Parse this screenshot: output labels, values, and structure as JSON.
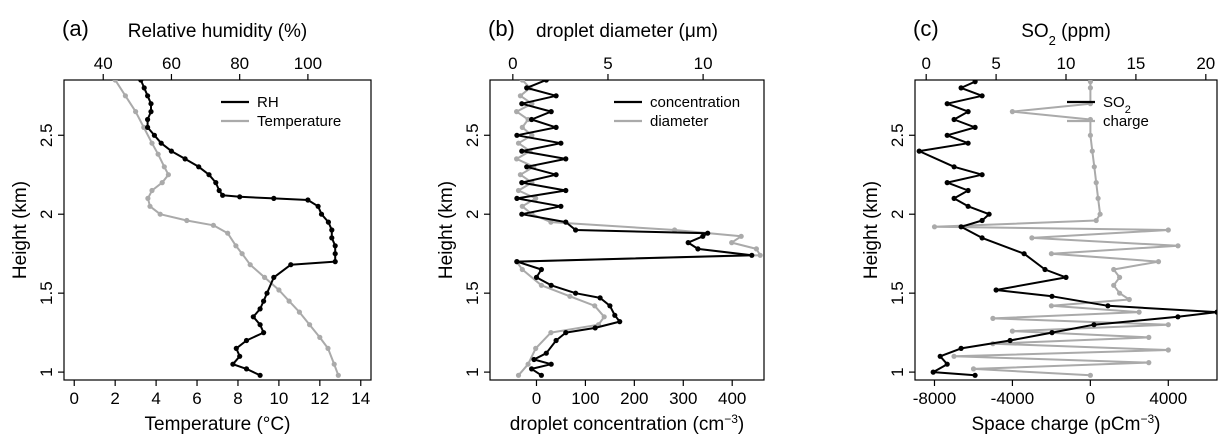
{
  "colors": {
    "black_series": "#000000",
    "gray_series": "#aaaaaa"
  },
  "chart_data": [
    {
      "type": "line",
      "panel_label": "(a)",
      "y": {
        "label": "Height (km)",
        "range": [
          0.95,
          2.85
        ],
        "ticks": [
          1.0,
          1.5,
          2.0,
          2.5
        ]
      },
      "x_bottom": {
        "label": "Temperature (°C)",
        "range": [
          -0.5,
          14.5
        ],
        "ticks": [
          0,
          2,
          4,
          6,
          8,
          10,
          12,
          14
        ]
      },
      "x_top": {
        "label": "Relative humidity (%)",
        "range": [
          28.5,
          118.5
        ],
        "ticks": [
          40,
          60,
          80,
          100
        ]
      },
      "legend": {
        "placement": "top-right",
        "entries": [
          "RH",
          "Temperature"
        ]
      },
      "series": [
        {
          "name": "RH",
          "axis": "top",
          "color": "black",
          "markers": true,
          "points": [
            [
              51,
              2.85
            ],
            [
              52,
              2.8
            ],
            [
              53,
              2.75
            ],
            [
              54,
              2.7
            ],
            [
              54,
              2.65
            ],
            [
              53,
              2.6
            ],
            [
              53,
              2.55
            ],
            [
              55,
              2.5
            ],
            [
              57,
              2.45
            ],
            [
              60,
              2.4
            ],
            [
              64,
              2.35
            ],
            [
              68,
              2.3
            ],
            [
              71,
              2.25
            ],
            [
              73,
              2.2
            ],
            [
              74,
              2.15
            ],
            [
              75,
              2.12
            ],
            [
              80,
              2.11
            ],
            [
              90,
              2.1
            ],
            [
              100,
              2.09
            ],
            [
              103,
              2.05
            ],
            [
              104,
              2.0
            ],
            [
              106,
              1.95
            ],
            [
              107,
              1.9
            ],
            [
              107,
              1.85
            ],
            [
              108,
              1.8
            ],
            [
              108,
              1.75
            ],
            [
              108,
              1.7
            ],
            [
              95,
              1.68
            ],
            [
              90,
              1.6
            ],
            [
              88,
              1.5
            ],
            [
              87,
              1.45
            ],
            [
              86,
              1.4
            ],
            [
              84,
              1.35
            ],
            [
              86,
              1.3
            ],
            [
              87,
              1.25
            ],
            [
              82,
              1.2
            ],
            [
              79,
              1.15
            ],
            [
              80,
              1.1
            ],
            [
              78,
              1.05
            ],
            [
              82,
              1.02
            ],
            [
              86,
              0.98
            ]
          ]
        },
        {
          "name": "Temperature",
          "axis": "bottom",
          "color": "gray",
          "markers": true,
          "points": [
            [
              2.0,
              2.85
            ],
            [
              2.5,
              2.75
            ],
            [
              3.0,
              2.65
            ],
            [
              3.4,
              2.55
            ],
            [
              3.8,
              2.45
            ],
            [
              4.1,
              2.38
            ],
            [
              4.4,
              2.3
            ],
            [
              4.6,
              2.25
            ],
            [
              4.3,
              2.2
            ],
            [
              3.8,
              2.15
            ],
            [
              3.6,
              2.1
            ],
            [
              3.7,
              2.05
            ],
            [
              4.2,
              2.0
            ],
            [
              5.5,
              1.96
            ],
            [
              6.8,
              1.93
            ],
            [
              7.5,
              1.88
            ],
            [
              7.9,
              1.8
            ],
            [
              8.2,
              1.75
            ],
            [
              8.6,
              1.68
            ],
            [
              9.3,
              1.6
            ],
            [
              10.0,
              1.52
            ],
            [
              10.5,
              1.45
            ],
            [
              11.0,
              1.38
            ],
            [
              11.5,
              1.3
            ],
            [
              12.0,
              1.22
            ],
            [
              12.4,
              1.15
            ],
            [
              12.7,
              1.05
            ],
            [
              12.9,
              0.98
            ]
          ]
        }
      ]
    },
    {
      "type": "line",
      "panel_label": "(b)",
      "y": {
        "label": "Height (km)",
        "range": [
          0.95,
          2.85
        ],
        "ticks": [
          1.0,
          1.5,
          2.0,
          2.5
        ]
      },
      "x_bottom": {
        "label": "droplet concentration (cm",
        "label_sup": "−3",
        "label_tail": ")",
        "range": [
          -95,
          465
        ],
        "ticks": [
          0,
          100,
          200,
          300,
          400
        ]
      },
      "x_top": {
        "label": "droplet diameter (μm)",
        "range": [
          -1.2,
          13.2
        ],
        "ticks": [
          0,
          5,
          10
        ]
      },
      "legend": {
        "placement": "top-right",
        "entries": [
          "concentration",
          "diameter"
        ]
      },
      "series": [
        {
          "name": "concentration",
          "axis": "bottom",
          "color": "black",
          "markers": true,
          "points": [
            [
              10,
              0.98
            ],
            [
              -10,
              1.02
            ],
            [
              30,
              1.05
            ],
            [
              -5,
              1.08
            ],
            [
              20,
              1.12
            ],
            [
              40,
              1.2
            ],
            [
              60,
              1.25
            ],
            [
              120,
              1.28
            ],
            [
              170,
              1.32
            ],
            [
              160,
              1.36
            ],
            [
              150,
              1.42
            ],
            [
              130,
              1.47
            ],
            [
              80,
              1.5
            ],
            [
              30,
              1.55
            ],
            [
              0,
              1.6
            ],
            [
              10,
              1.65
            ],
            [
              -40,
              1.7
            ],
            [
              440,
              1.74
            ],
            [
              330,
              1.78
            ],
            [
              310,
              1.82
            ],
            [
              340,
              1.86
            ],
            [
              350,
              1.88
            ],
            [
              80,
              1.9
            ],
            [
              60,
              1.95
            ],
            [
              -30,
              2.0
            ],
            [
              50,
              2.05
            ],
            [
              -40,
              2.1
            ],
            [
              60,
              2.15
            ],
            [
              -30,
              2.2
            ],
            [
              40,
              2.25
            ],
            [
              -20,
              2.3
            ],
            [
              60,
              2.35
            ],
            [
              -30,
              2.4
            ],
            [
              50,
              2.45
            ],
            [
              -40,
              2.5
            ],
            [
              40,
              2.55
            ],
            [
              -10,
              2.6
            ],
            [
              30,
              2.65
            ],
            [
              -30,
              2.7
            ],
            [
              40,
              2.75
            ],
            [
              -20,
              2.8
            ],
            [
              20,
              2.85
            ]
          ]
        },
        {
          "name": "diameter",
          "axis": "top",
          "color": "gray",
          "markers": true,
          "points": [
            [
              0.3,
              0.98
            ],
            [
              0.8,
              1.05
            ],
            [
              1.2,
              1.15
            ],
            [
              2.0,
              1.25
            ],
            [
              4.5,
              1.3
            ],
            [
              4.8,
              1.35
            ],
            [
              4.3,
              1.42
            ],
            [
              3.0,
              1.48
            ],
            [
              1.5,
              1.55
            ],
            [
              0.5,
              1.65
            ],
            [
              0.2,
              1.7
            ],
            [
              13.0,
              1.74
            ],
            [
              12.8,
              1.78
            ],
            [
              11.5,
              1.82
            ],
            [
              12.0,
              1.86
            ],
            [
              8.5,
              1.9
            ],
            [
              2.0,
              1.95
            ],
            [
              1.0,
              2.0
            ],
            [
              0.5,
              2.05
            ],
            [
              1.2,
              2.1
            ],
            [
              0.3,
              2.15
            ],
            [
              1.0,
              2.2
            ],
            [
              0.4,
              2.25
            ],
            [
              1.1,
              2.3
            ],
            [
              0.2,
              2.35
            ],
            [
              0.9,
              2.4
            ],
            [
              0.3,
              2.45
            ],
            [
              1.0,
              2.5
            ],
            [
              0.5,
              2.55
            ],
            [
              0.8,
              2.6
            ],
            [
              0.2,
              2.65
            ],
            [
              1.0,
              2.7
            ],
            [
              0.4,
              2.75
            ],
            [
              0.9,
              2.8
            ],
            [
              0.5,
              2.85
            ]
          ]
        }
      ]
    },
    {
      "type": "line",
      "panel_label": "(c)",
      "y": {
        "label": "Height (km)",
        "range": [
          0.95,
          2.85
        ],
        "ticks": [
          1.0,
          1.5,
          2.0,
          2.5
        ]
      },
      "x_bottom": {
        "label": "Space charge (pCm",
        "label_sup": "−3",
        "label_tail": ")",
        "range": [
          -9000,
          6500
        ],
        "ticks": [
          -8000,
          -4000,
          0,
          4000
        ]
      },
      "x_top": {
        "label": "SO",
        "label_sub": "2",
        "label_tail": " (ppm)",
        "range": [
          -0.8,
          20.8
        ],
        "ticks": [
          0,
          5,
          10,
          15,
          20
        ]
      },
      "legend": {
        "placement": "top-right",
        "entries": [
          {
            "text": "SO",
            "sub": "2"
          },
          {
            "text": "charge"
          }
        ]
      },
      "series": [
        {
          "name": "SO2",
          "axis": "top",
          "color": "black",
          "markers": true,
          "points": [
            [
              3.5,
              0.98
            ],
            [
              0.5,
              1.0
            ],
            [
              1.5,
              1.05
            ],
            [
              1.0,
              1.1
            ],
            [
              2.5,
              1.15
            ],
            [
              6.0,
              1.2
            ],
            [
              9.0,
              1.25
            ],
            [
              12.0,
              1.3
            ],
            [
              18.0,
              1.35
            ],
            [
              20.8,
              1.38
            ],
            [
              13.0,
              1.42
            ],
            [
              9.0,
              1.48
            ],
            [
              5.0,
              1.52
            ],
            [
              10.0,
              1.6
            ],
            [
              8.5,
              1.65
            ],
            [
              7.0,
              1.75
            ],
            [
              4.0,
              1.85
            ],
            [
              2.5,
              1.92
            ],
            [
              4.0,
              1.96
            ],
            [
              4.5,
              2.0
            ],
            [
              3.0,
              2.05
            ],
            [
              2.0,
              2.1
            ],
            [
              3.0,
              2.15
            ],
            [
              1.5,
              2.2
            ],
            [
              4.0,
              2.25
            ],
            [
              2.0,
              2.3
            ],
            [
              -0.5,
              2.4
            ],
            [
              3.0,
              2.45
            ],
            [
              1.5,
              2.5
            ],
            [
              3.5,
              2.55
            ],
            [
              2.0,
              2.6
            ],
            [
              3.0,
              2.65
            ],
            [
              1.5,
              2.7
            ],
            [
              4.0,
              2.75
            ],
            [
              2.5,
              2.8
            ],
            [
              3.5,
              2.84
            ]
          ]
        },
        {
          "name": "charge",
          "axis": "bottom",
          "color": "gray",
          "markers": true,
          "points": [
            [
              0,
              0.98
            ],
            [
              -6000,
              1.02
            ],
            [
              3000,
              1.06
            ],
            [
              -7000,
              1.1
            ],
            [
              4000,
              1.14
            ],
            [
              -5000,
              1.18
            ],
            [
              3000,
              1.22
            ],
            [
              -4000,
              1.26
            ],
            [
              4000,
              1.3
            ],
            [
              -5000,
              1.34
            ],
            [
              2500,
              1.38
            ],
            [
              -2000,
              1.42
            ],
            [
              2000,
              1.46
            ],
            [
              1500,
              1.5
            ],
            [
              1200,
              1.55
            ],
            [
              1500,
              1.6
            ],
            [
              1200,
              1.65
            ],
            [
              3500,
              1.7
            ],
            [
              -2000,
              1.75
            ],
            [
              4500,
              1.8
            ],
            [
              -3000,
              1.85
            ],
            [
              4000,
              1.9
            ],
            [
              -8000,
              1.92
            ],
            [
              300,
              1.96
            ],
            [
              500,
              2.0
            ],
            [
              400,
              2.1
            ],
            [
              300,
              2.2
            ],
            [
              200,
              2.3
            ],
            [
              100,
              2.4
            ],
            [
              0,
              2.5
            ],
            [
              0,
              2.6
            ],
            [
              -4000,
              2.65
            ],
            [
              0,
              2.7
            ],
            [
              0,
              2.8
            ],
            [
              0,
              2.84
            ]
          ]
        }
      ]
    }
  ]
}
